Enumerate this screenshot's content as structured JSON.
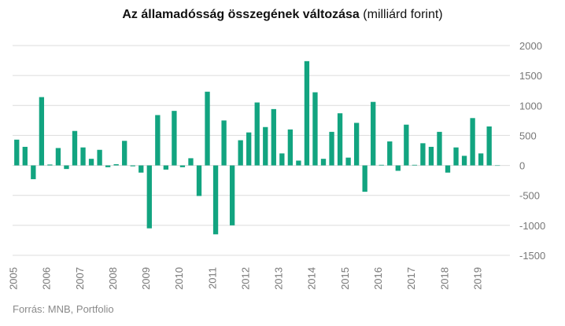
{
  "title": {
    "main": "Az államadósság összegének változása",
    "unit": "(milliárd forint)"
  },
  "source": "Forrás: MNB, Portfolio",
  "colors": {
    "bar": "#12a480",
    "grid": "#dcdcdc",
    "text": "#777777"
  },
  "chart_data": {
    "type": "bar",
    "ylim": [
      -1500,
      2000
    ],
    "yticks": [
      -1500,
      -1000,
      -500,
      0,
      500,
      1000,
      1500,
      2000
    ],
    "ytick_labels": [
      "-1500",
      "-1000",
      "-500",
      "0",
      "500",
      "1000",
      "1500",
      "2000"
    ],
    "xlim": [
      2005.0,
      2019.75
    ],
    "xticks": [
      2005,
      2006,
      2007,
      2008,
      2009,
      2010,
      2011,
      2012,
      2013,
      2014,
      2015,
      2016,
      2017,
      2018,
      2019
    ],
    "xtick_labels": [
      "2005",
      "2006",
      "2007",
      "2008",
      "2009",
      "2010",
      "2011",
      "2012",
      "2013",
      "2014",
      "2015",
      "2016",
      "2017",
      "2018",
      "2019"
    ],
    "grid": true,
    "bar_width_fraction": 0.6,
    "x": [
      2005.0,
      2005.25,
      2005.5,
      2005.75,
      2006.0,
      2006.25,
      2006.5,
      2006.75,
      2007.0,
      2007.25,
      2007.5,
      2007.75,
      2008.0,
      2008.25,
      2008.5,
      2008.75,
      2009.0,
      2009.25,
      2009.5,
      2009.75,
      2010.0,
      2010.25,
      2010.5,
      2010.75,
      2011.0,
      2011.25,
      2011.5,
      2011.75,
      2012.0,
      2012.25,
      2012.5,
      2012.75,
      2013.0,
      2013.25,
      2013.5,
      2013.75,
      2014.0,
      2014.25,
      2014.5,
      2014.75,
      2015.0,
      2015.25,
      2015.5,
      2015.75,
      2016.0,
      2016.25,
      2016.5,
      2016.75,
      2017.0,
      2017.25,
      2017.5,
      2017.75,
      2018.0,
      2018.25,
      2018.5,
      2018.75,
      2019.0,
      2019.25,
      2019.5
    ],
    "values": [
      430,
      310,
      -230,
      1140,
      15,
      290,
      -60,
      575,
      300,
      110,
      260,
      -30,
      20,
      410,
      -15,
      -120,
      -1050,
      840,
      -70,
      910,
      -30,
      120,
      -510,
      1230,
      -1150,
      750,
      -1000,
      420,
      550,
      1050,
      640,
      940,
      200,
      600,
      80,
      1740,
      1220,
      110,
      560,
      870,
      130,
      710,
      -440,
      1060,
      10,
      400,
      -90,
      680,
      10,
      370,
      310,
      560,
      -120,
      300,
      160,
      790,
      200,
      650,
      0
    ]
  }
}
